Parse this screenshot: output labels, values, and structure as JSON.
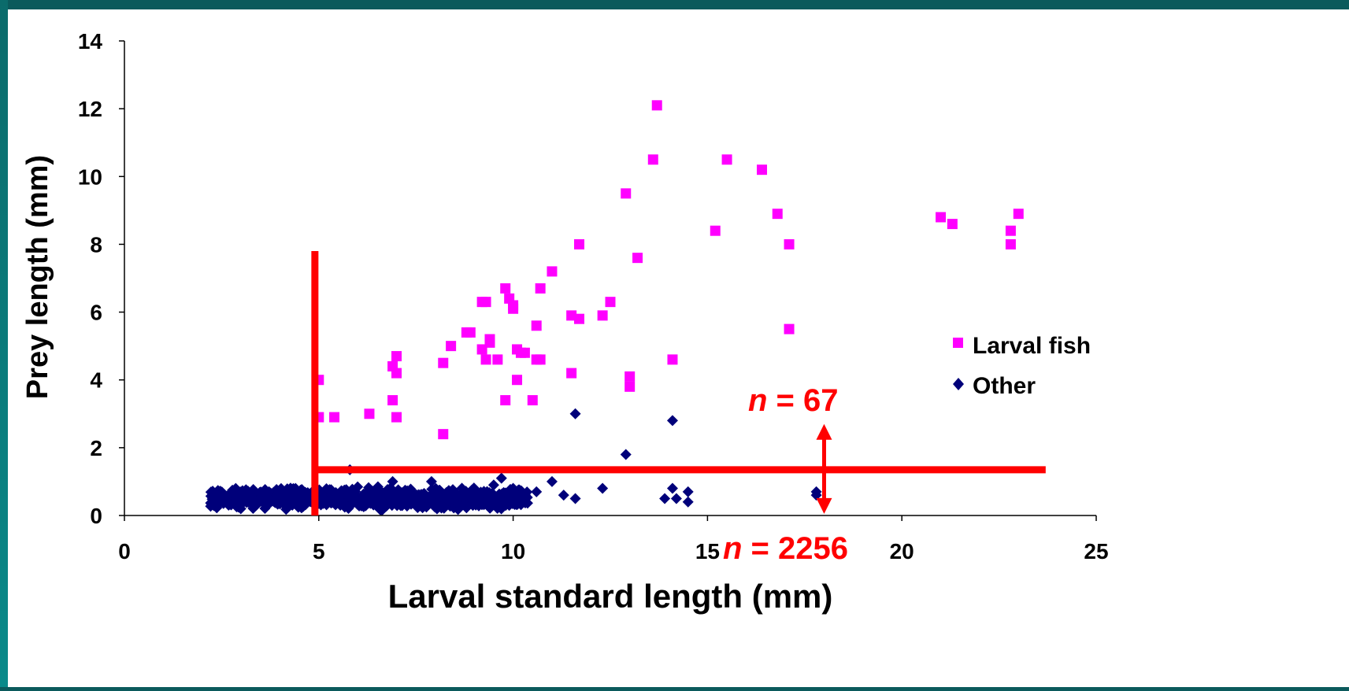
{
  "colors": {
    "larval_fish": "#ff00ff",
    "other": "#00007a",
    "annotation": "#ff0000",
    "frame": "#0b5a5c"
  },
  "chart_data": {
    "type": "scatter",
    "xlabel": "Larval standard length (mm)",
    "ylabel": "Prey length (mm)",
    "xlim": [
      0,
      25
    ],
    "ylim": [
      0,
      14
    ],
    "x_ticks": [
      "0",
      "5",
      "10",
      "15",
      "20",
      "25"
    ],
    "y_ticks": [
      "0",
      "2",
      "4",
      "6",
      "8",
      "10",
      "12",
      "14"
    ],
    "legend_position": "right",
    "series": [
      {
        "name": "Larval fish",
        "marker": "square",
        "color": "#ff00ff",
        "points": [
          [
            5.0,
            4.0
          ],
          [
            5.0,
            2.9
          ],
          [
            5.4,
            2.9
          ],
          [
            6.3,
            3.0
          ],
          [
            6.9,
            3.4
          ],
          [
            7.0,
            2.9
          ],
          [
            6.9,
            4.4
          ],
          [
            7.0,
            4.7
          ],
          [
            7.0,
            4.2
          ],
          [
            8.2,
            2.4
          ],
          [
            8.2,
            4.5
          ],
          [
            8.4,
            5.0
          ],
          [
            8.8,
            5.4
          ],
          [
            8.9,
            5.4
          ],
          [
            9.2,
            4.9
          ],
          [
            9.2,
            6.3
          ],
          [
            9.3,
            4.6
          ],
          [
            9.3,
            6.3
          ],
          [
            9.4,
            5.1
          ],
          [
            9.4,
            5.2
          ],
          [
            9.6,
            4.6
          ],
          [
            9.8,
            3.4
          ],
          [
            9.8,
            6.7
          ],
          [
            9.9,
            6.4
          ],
          [
            10.0,
            6.1
          ],
          [
            10.0,
            6.2
          ],
          [
            10.1,
            4.0
          ],
          [
            10.1,
            4.9
          ],
          [
            10.2,
            4.8
          ],
          [
            10.3,
            4.8
          ],
          [
            10.5,
            3.4
          ],
          [
            10.6,
            4.6
          ],
          [
            10.6,
            5.6
          ],
          [
            10.7,
            4.6
          ],
          [
            10.7,
            6.7
          ],
          [
            11.0,
            7.2
          ],
          [
            11.5,
            4.2
          ],
          [
            11.5,
            5.9
          ],
          [
            11.7,
            5.8
          ],
          [
            11.7,
            8.0
          ],
          [
            12.3,
            5.9
          ],
          [
            12.5,
            6.3
          ],
          [
            12.9,
            9.5
          ],
          [
            13.0,
            4.1
          ],
          [
            13.0,
            3.8
          ],
          [
            13.2,
            7.6
          ],
          [
            13.6,
            10.5
          ],
          [
            13.7,
            12.1
          ],
          [
            14.1,
            4.6
          ],
          [
            15.2,
            8.4
          ],
          [
            15.5,
            10.5
          ],
          [
            16.4,
            10.2
          ],
          [
            16.8,
            8.9
          ],
          [
            17.1,
            8.0
          ],
          [
            17.1,
            5.5
          ],
          [
            21.0,
            8.8
          ],
          [
            21.3,
            8.6
          ],
          [
            22.8,
            8.4
          ],
          [
            22.8,
            8.0
          ],
          [
            23.0,
            8.9
          ]
        ]
      },
      {
        "name": "Other",
        "marker": "diamond",
        "color": "#00007a",
        "points": [
          [
            5.8,
            1.35
          ],
          [
            6.9,
            1.0
          ],
          [
            7.9,
            1.0
          ],
          [
            9.7,
            1.1
          ],
          [
            11.0,
            1.0
          ],
          [
            11.6,
            3.0
          ],
          [
            12.9,
            1.8
          ],
          [
            14.1,
            2.8
          ],
          [
            12.3,
            0.8
          ],
          [
            14.1,
            0.8
          ],
          [
            14.5,
            0.7
          ],
          [
            13.9,
            0.5
          ],
          [
            14.2,
            0.5
          ],
          [
            14.5,
            0.4
          ],
          [
            11.6,
            0.5
          ],
          [
            11.3,
            0.6
          ],
          [
            10.6,
            0.7
          ],
          [
            17.8,
            0.7
          ],
          [
            17.8,
            0.6
          ],
          [
            10.0,
            0.8
          ],
          [
            9.6,
            0.3
          ],
          [
            9.9,
            0.3
          ],
          [
            10.1,
            0.5
          ],
          [
            9.5,
            0.9
          ]
        ],
        "dense_band": {
          "x_range": [
            2.2,
            10.4
          ],
          "y_range": [
            0.1,
            0.9
          ]
        }
      }
    ],
    "annotations": {
      "n_upper_italic": "n",
      "n_upper_value": " = 67",
      "n_lower_italic": "n",
      "n_lower_value": " = 2256",
      "vertical_line_x": 4.9,
      "vertical_line_y_range": [
        0,
        7.8
      ],
      "horizontal_line_y": 1.35,
      "horizontal_line_x_range": [
        4.9,
        23.7
      ],
      "arrow_x": 18.0,
      "arrow_y_range": [
        0.05,
        2.7
      ]
    }
  }
}
